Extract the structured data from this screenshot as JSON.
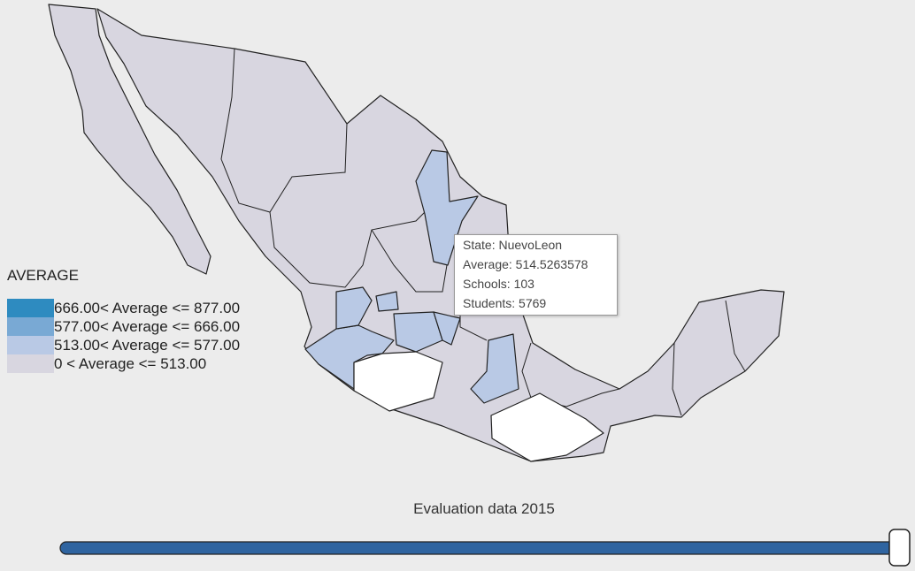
{
  "legend": {
    "title": "AVERAGE",
    "items": [
      {
        "label": "666.00< Average <= 877.00",
        "color": "#2e8bc0"
      },
      {
        "label": "577.00< Average <= 666.00",
        "color": "#79a9d4"
      },
      {
        "label": "513.00< Average <= 577.00",
        "color": "#b9c9e5"
      },
      {
        "label": "0 < Average <= 513.00",
        "color": "#d8d6e0"
      }
    ]
  },
  "tooltip": {
    "lines": [
      "State: NuevoLeon",
      "Average: 514.5263578",
      "Schools: 103",
      "Students: 5769"
    ]
  },
  "caption": "Evaluation data 2015"
}
